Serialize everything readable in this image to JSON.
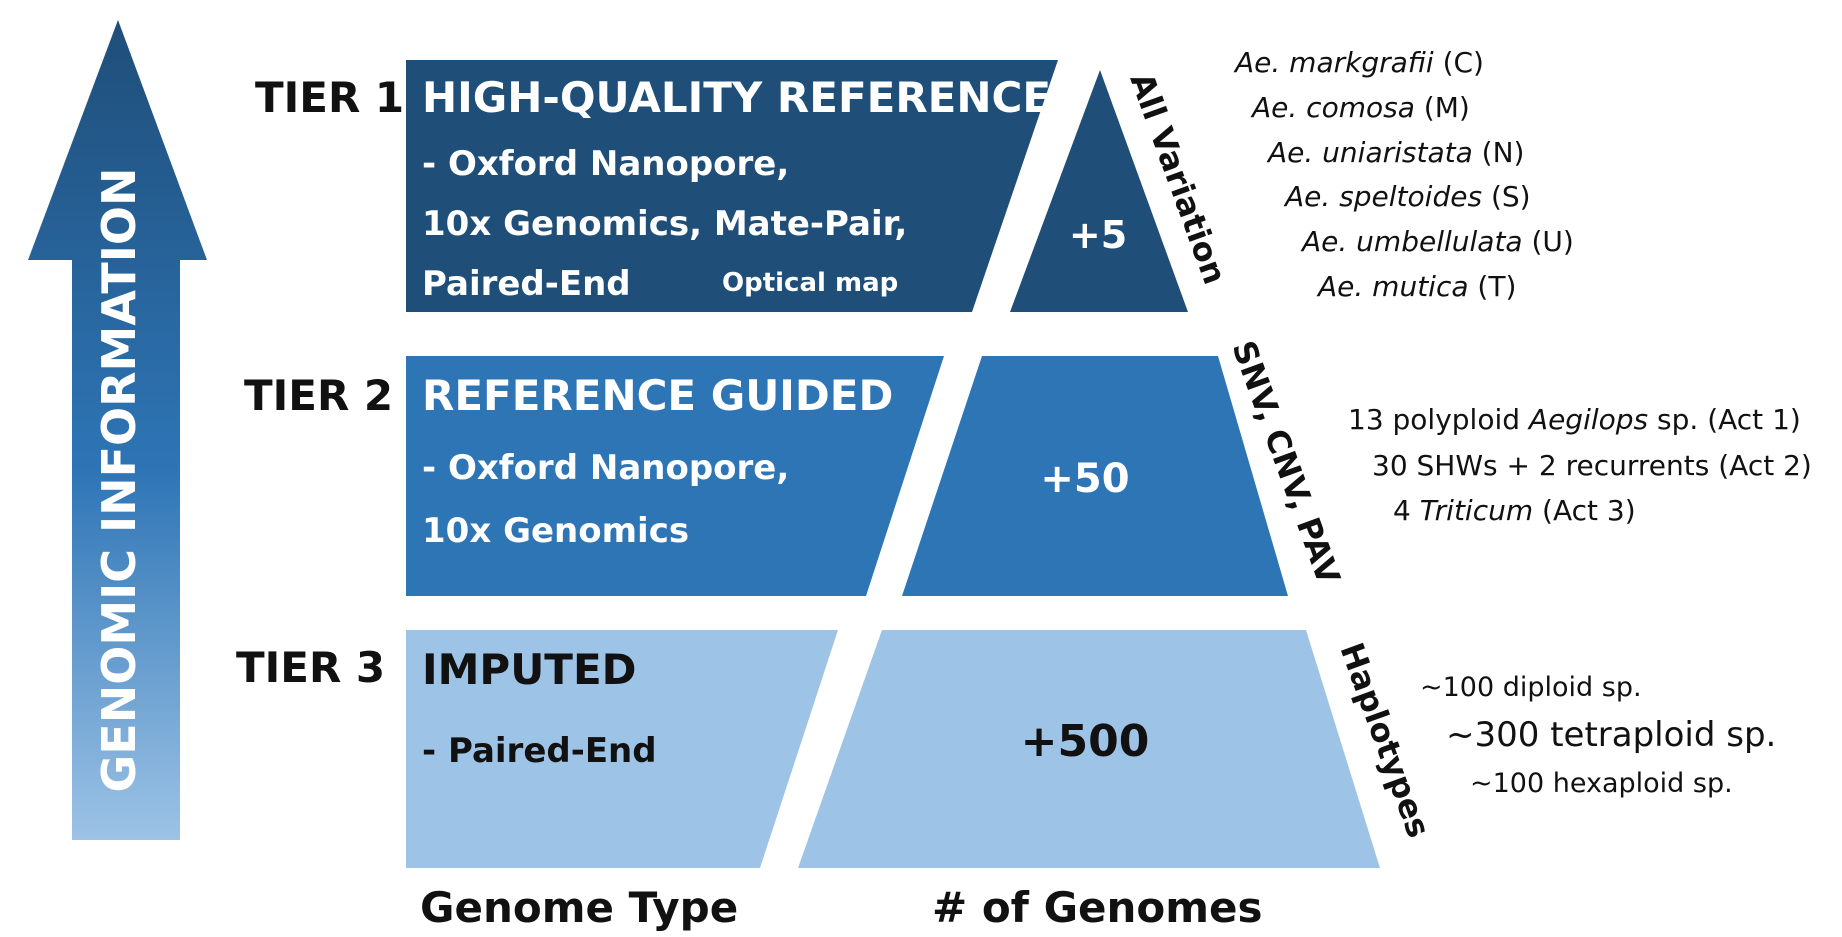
{
  "axis": {
    "label": "GENOMIC INFORMATION"
  },
  "tiers": [
    {
      "tier_label": "TIER 1",
      "genome_type_title": "HIGH-QUALITY REFERENCE",
      "methods": [
        "- Oxford Nanopore,",
        "10x Genomics, Mate-Pair,",
        "Paired-End"
      ],
      "extra_method": "Optical map",
      "genome_count": "+5",
      "variation": "All Variation",
      "color": "#1f4e79"
    },
    {
      "tier_label": "TIER 2",
      "genome_type_title": "REFERENCE GUIDED",
      "methods": [
        "- Oxford Nanopore,",
        "10x Genomics"
      ],
      "genome_count": "+50",
      "variation": "SNV, CNV, PAV",
      "color": "#2e75b6"
    },
    {
      "tier_label": "TIER 3",
      "genome_type_title": "IMPUTED",
      "methods": [
        "- Paired-End"
      ],
      "genome_count": "+500",
      "variation": "Haplotypes",
      "color": "#9dc3e6"
    }
  ],
  "columns": {
    "left": "Genome Type",
    "right": "# of Genomes"
  },
  "species": {
    "tier1": [
      {
        "name": "Ae. markgrafii",
        "code": "(C)"
      },
      {
        "name": "Ae. comosa",
        "code": "(M)"
      },
      {
        "name": "Ae. uniaristata",
        "code": "(N)"
      },
      {
        "name": "Ae. speltoides",
        "code": "(S)"
      },
      {
        "name": "Ae. umbellulata",
        "code": "(U)"
      },
      {
        "name": "Ae. mutica",
        "code": "(T)"
      }
    ],
    "tier2": [
      {
        "pre": "13 polyploid ",
        "italic": "Aegilops",
        "post": " sp. (Act 1)"
      },
      {
        "pre": "30 SHWs + 2 recurrents (Act 2)",
        "italic": "",
        "post": ""
      },
      {
        "pre": "4 ",
        "italic": "Triticum",
        "post": " (Act 3)"
      }
    ],
    "tier3": [
      "~100 diploid sp.",
      "~300 tetraploid sp.",
      "~100 hexaploid sp."
    ]
  }
}
